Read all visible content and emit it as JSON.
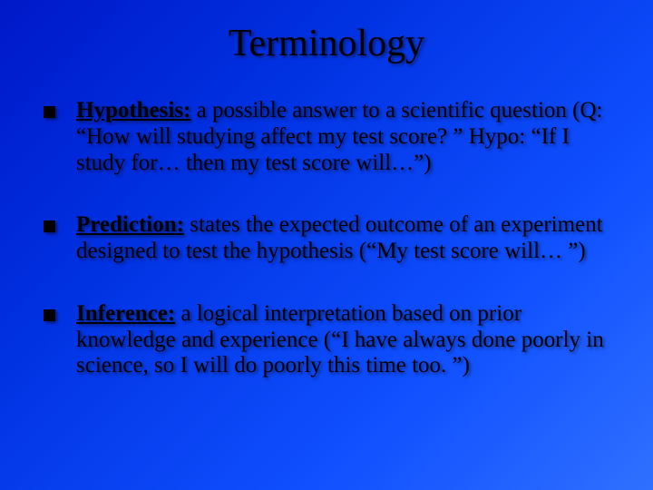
{
  "slide": {
    "title": "Terminology",
    "title_fontsize": 42,
    "body_fontsize": 25,
    "background_gradient": {
      "type": "linear",
      "angle": 135,
      "stops": [
        "#0018c8",
        "#0030e0",
        "#1050ff",
        "#3070ff"
      ]
    },
    "text_color": "#000000",
    "text_shadow": "2px 2px 3px rgba(0,0,0,0.5)",
    "bullet_shape": "square",
    "bullet_color": "#000000",
    "bullet_size": 13,
    "items": [
      {
        "term": "Hypothesis:",
        "definition": " a possible answer to a scientific question  (Q: “How will studying affect my test score? ” Hypo: “If I study for… then my test score will…”)"
      },
      {
        "term": "Prediction:",
        "definition": " states the expected outcome of an experiment designed to test the hypothesis (“My test score will… ”)"
      },
      {
        "term": "Inference:",
        "definition": " a logical interpretation based on prior knowledge and experience (“I have always done poorly in science, so I will do poorly this time too. ”)"
      }
    ]
  }
}
